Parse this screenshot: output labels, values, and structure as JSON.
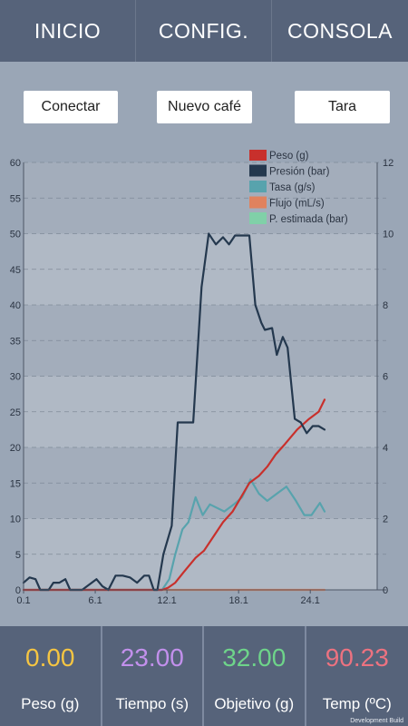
{
  "tabs": [
    {
      "label": "INICIO"
    },
    {
      "label": "CONFIG."
    },
    {
      "label": "CONSOLA"
    }
  ],
  "buttons": {
    "connect": "Conectar",
    "new_coffee": "Nuevo café",
    "tare": "Tara"
  },
  "chart_data": {
    "type": "line",
    "left_axis": {
      "ticks": [
        0,
        5,
        10,
        15,
        20,
        25,
        30,
        35,
        40,
        45,
        50,
        55,
        60
      ],
      "ylim": [
        0,
        60
      ]
    },
    "right_axis": {
      "ticks": [
        0,
        2,
        4,
        6,
        8,
        10,
        12
      ],
      "ylim": [
        0,
        12
      ]
    },
    "x_axis": {
      "ticks": [
        "0.1",
        "6.1",
        "12.1",
        "18.1",
        "24.1"
      ],
      "xlim": [
        0.1,
        29.7
      ]
    },
    "grid": true,
    "legend_position": "top-right",
    "series": [
      {
        "name": "Peso (g)",
        "color": "#c8302c",
        "axis": "left",
        "points": [
          [
            0.1,
            0
          ],
          [
            11.7,
            0
          ],
          [
            12.2,
            0.3
          ],
          [
            12.8,
            1
          ],
          [
            13.5,
            2.5
          ],
          [
            14.5,
            4.5
          ],
          [
            15.2,
            5.5
          ],
          [
            16,
            7.5
          ],
          [
            16.8,
            9.5
          ],
          [
            17.6,
            11
          ],
          [
            18.3,
            13
          ],
          [
            19,
            15
          ],
          [
            19.8,
            16
          ],
          [
            20.5,
            17.3
          ],
          [
            21.2,
            19
          ],
          [
            22,
            20.5
          ],
          [
            23,
            22.5
          ],
          [
            24,
            24
          ],
          [
            24.8,
            25
          ],
          [
            25.3,
            26.7
          ]
        ]
      },
      {
        "name": "Presión (bar)",
        "color": "#24384e",
        "axis": "right",
        "points": [
          [
            0.1,
            0.2
          ],
          [
            0.6,
            0.35
          ],
          [
            1.1,
            0.3
          ],
          [
            1.5,
            0
          ],
          [
            2.2,
            0
          ],
          [
            2.6,
            0.2
          ],
          [
            3.1,
            0.2
          ],
          [
            3.6,
            0.3
          ],
          [
            4,
            0
          ],
          [
            5,
            0
          ],
          [
            5.6,
            0.15
          ],
          [
            6.2,
            0.3
          ],
          [
            6.7,
            0.1
          ],
          [
            7.2,
            0
          ],
          [
            7.8,
            0.4
          ],
          [
            8.4,
            0.4
          ],
          [
            9,
            0.35
          ],
          [
            9.6,
            0.2
          ],
          [
            10.2,
            0.4
          ],
          [
            10.6,
            0.4
          ],
          [
            11,
            0
          ],
          [
            11.3,
            0
          ],
          [
            11.8,
            1
          ],
          [
            12.5,
            1.8
          ],
          [
            13,
            4.7
          ],
          [
            13.8,
            4.7
          ],
          [
            14.3,
            4.7
          ],
          [
            15,
            8.5
          ],
          [
            15.6,
            10
          ],
          [
            16.2,
            9.7
          ],
          [
            16.8,
            9.9
          ],
          [
            17.3,
            9.7
          ],
          [
            17.8,
            9.95
          ],
          [
            19,
            9.95
          ],
          [
            19.5,
            8
          ],
          [
            20,
            7.5
          ],
          [
            20.3,
            7.3
          ],
          [
            20.9,
            7.35
          ],
          [
            21.3,
            6.6
          ],
          [
            21.8,
            7.1
          ],
          [
            22.2,
            6.8
          ],
          [
            22.8,
            4.8
          ],
          [
            23.3,
            4.7
          ],
          [
            23.8,
            4.4
          ],
          [
            24.3,
            4.6
          ],
          [
            24.8,
            4.6
          ],
          [
            25.3,
            4.5
          ]
        ]
      },
      {
        "name": "Tasa (g/s)",
        "color": "#58a3ad",
        "axis": "left",
        "points": [
          [
            0.1,
            0
          ],
          [
            11.7,
            0
          ],
          [
            12.3,
            1.5
          ],
          [
            12.8,
            5
          ],
          [
            13.4,
            8.5
          ],
          [
            13.9,
            9.5
          ],
          [
            14.5,
            13
          ],
          [
            15.1,
            10.5
          ],
          [
            15.7,
            12
          ],
          [
            16.3,
            11.5
          ],
          [
            16.9,
            11
          ],
          [
            17.7,
            12
          ],
          [
            18.4,
            13
          ],
          [
            19.1,
            15.5
          ],
          [
            19.8,
            13.5
          ],
          [
            20.5,
            12.5
          ],
          [
            21.3,
            13.5
          ],
          [
            22.1,
            14.5
          ],
          [
            22.9,
            12.5
          ],
          [
            23.6,
            10.5
          ],
          [
            24.2,
            10.5
          ],
          [
            24.9,
            12.2
          ],
          [
            25.3,
            11
          ]
        ]
      },
      {
        "name": "Flujo (mL/s)",
        "color": "#e0825e",
        "axis": "left",
        "points": [
          [
            0.1,
            0
          ],
          [
            25.3,
            0
          ]
        ]
      },
      {
        "name": "P. estimada (bar)",
        "color": "#80d0a8",
        "axis": "right",
        "points": []
      }
    ]
  },
  "stats": [
    {
      "value": "0.00",
      "label": "Peso (g)",
      "color": "#f5c542"
    },
    {
      "value": "23.00",
      "label": "Tiempo (s)",
      "color": "#c290ec"
    },
    {
      "value": "32.00",
      "label": "Objetivo (g)",
      "color": "#6ed48a"
    },
    {
      "value": "90.23",
      "label": "Temp (ºC)",
      "color": "#ec7280"
    }
  ],
  "build_label": "Development Build"
}
